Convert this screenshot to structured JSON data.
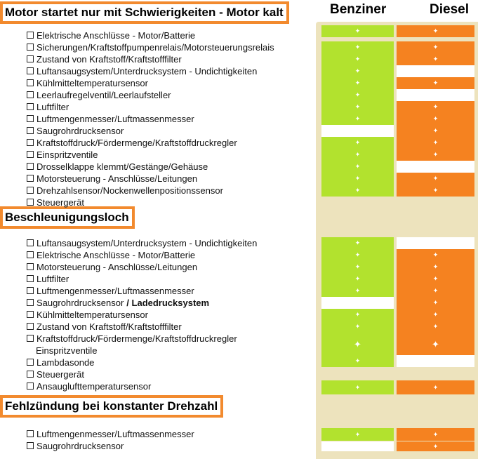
{
  "headers": {
    "benzin": "Benziner",
    "diesel": "Diesel"
  },
  "colors": {
    "benzin": "#b2e22e",
    "diesel": "#f58220",
    "panel": "#ede3bd",
    "title_border": "#f28a2e"
  },
  "sections": [
    {
      "title": "Motor startet nur mit Schwierigkeiten - Motor kalt",
      "items": [
        {
          "label": "Elektrische Anschlüsse - Motor/Batterie",
          "benzin": true,
          "diesel": true
        },
        {
          "label": "Sicherungen/Kraftstoffpumpenrelais/Motorsteuerungsrelais",
          "benzin": true,
          "diesel": true
        },
        {
          "label": "Zustand von Kraftstoff/Kraftstofffilter",
          "benzin": true,
          "diesel": true
        },
        {
          "label": "Luftansaugsystem/Unterdrucksystem - Undichtigkeiten",
          "benzin": true,
          "diesel": false
        },
        {
          "label": "Kühlmitteltemperatursensor",
          "benzin": true,
          "diesel": true
        },
        {
          "label": "Leerlaufregelventil/Leerlaufsteller",
          "benzin": true,
          "diesel": false
        },
        {
          "label": "Luftfilter",
          "benzin": true,
          "diesel": true
        },
        {
          "label": "Luftmengenmesser/Luftmassenmesser",
          "benzin": true,
          "diesel": true
        },
        {
          "label": "Saugrohrdrucksensor",
          "benzin": false,
          "diesel": true
        },
        {
          "label": "Kraftstoffdruck/Fördermenge/Kraftstoffdruckregler",
          "benzin": true,
          "diesel": true
        },
        {
          "label": "Einspritzventile",
          "benzin": true,
          "diesel": true
        },
        {
          "label": "Drosselklappe klemmt/Gestänge/Gehäuse",
          "benzin": true,
          "diesel": false
        },
        {
          "label": "Motorsteuerung - Anschlüsse/Leitungen",
          "benzin": true,
          "diesel": true
        },
        {
          "label": "Drehzahlsensor/Nockenwellenpositionssensor",
          "benzin": true,
          "diesel": true
        },
        {
          "label": "Steuergerät",
          "benzin": false,
          "diesel": false
        }
      ]
    },
    {
      "title": "Beschleunigungsloch",
      "items": [
        {
          "label": "Luftansaugsystem/Unterdrucksystem - Undichtigkeiten",
          "benzin": true,
          "diesel": false
        },
        {
          "label": "Elektrische Anschlüsse - Motor/Batterie",
          "benzin": true,
          "diesel": true
        },
        {
          "label": "Motorsteuerung - Anschlüsse/Leitungen",
          "benzin": true,
          "diesel": true
        },
        {
          "label": "Luftfilter",
          "benzin": true,
          "diesel": true
        },
        {
          "label": "Luftmengenmesser/Luftmassenmesser",
          "benzin": true,
          "diesel": true
        },
        {
          "label": "Saugrohrdrucksensor",
          "extra": "/ Ladedrucksystem",
          "benzin": false,
          "diesel": true
        },
        {
          "label": "Kühlmitteltemperatursensor",
          "benzin": true,
          "diesel": true
        },
        {
          "label": "Zustand von Kraftstoff/Kraftstofffilter",
          "benzin": true,
          "diesel": true
        },
        {
          "label": "Kraftstoffdruck/Fördermenge/Kraftstoffdruckregler",
          "label2": "Einspritzventile",
          "benzin": true,
          "diesel": true
        },
        {
          "label": "Lambdasonde",
          "benzin": true,
          "diesel": false
        },
        {
          "label": "Steuergerät",
          "benzin": false,
          "diesel": false
        },
        {
          "label": "Ansauglufttemperatursensor",
          "benzin": true,
          "diesel": true
        }
      ]
    },
    {
      "title": "Fehlzündung bei konstanter Drehzahl",
      "items": [
        {
          "label": "Luftmengenmesser/Luftmassenmesser",
          "benzin": true,
          "diesel": true
        },
        {
          "label": "Saugrohrdrucksensor",
          "benzin": false,
          "diesel": true
        }
      ]
    }
  ]
}
